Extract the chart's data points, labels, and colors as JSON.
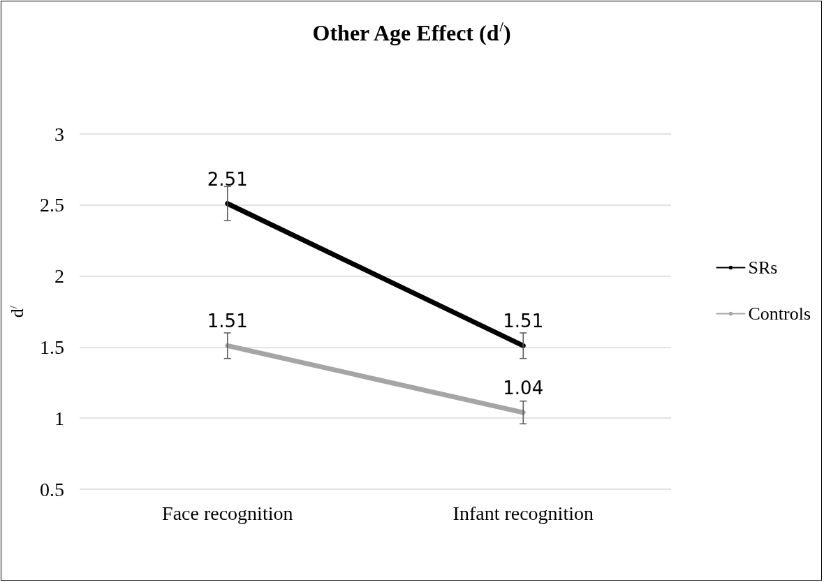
{
  "chart_data": {
    "type": "line",
    "title": "Other Age Effect (d$^{/}$)",
    "ylabel": "d$^{/}$",
    "categories": [
      "Face recognition",
      "Infant recognition"
    ],
    "series": [
      {
        "name": "SRs",
        "color": "#000000",
        "values": [
          2.51,
          1.51
        ],
        "errors": [
          0.12,
          0.09
        ]
      },
      {
        "name": "Controls",
        "color": "#a5a5a5",
        "values": [
          1.51,
          1.04
        ],
        "errors": [
          0.09,
          0.08
        ]
      }
    ],
    "ylim": [
      0.5,
      3
    ],
    "yticks": [
      0.5,
      1,
      1.5,
      2,
      2.5,
      3
    ],
    "grid": "y",
    "legend": "right",
    "marker": "none",
    "line_style": "solid",
    "data_labels": true
  }
}
